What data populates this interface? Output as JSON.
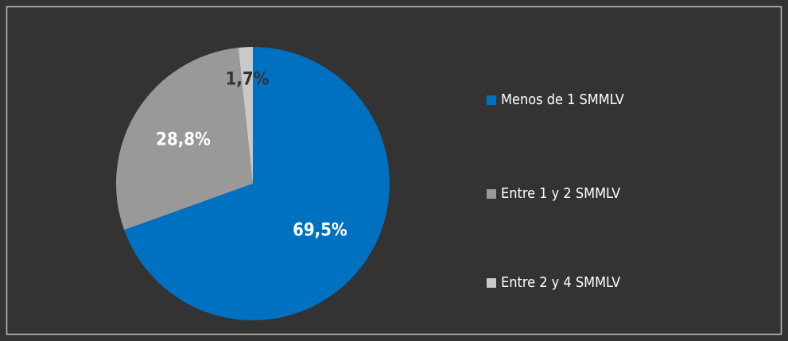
{
  "chart_data": {
    "type": "pie",
    "categories": [
      "Menos de 1 SMMLV",
      "Entre 1 y 2 SMMLV",
      "Entre 2 y 4 SMMLV"
    ],
    "values": [
      69.5,
      28.8,
      1.7
    ],
    "value_labels": [
      "69,5%",
      "28,8%",
      "1,7%"
    ],
    "colors": [
      "#0070c0",
      "#999999",
      "#c9c9c9"
    ],
    "legend": "right"
  }
}
